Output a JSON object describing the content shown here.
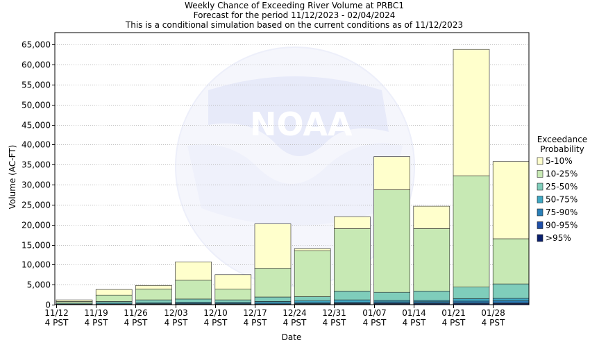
{
  "chart_data": {
    "type": "bar",
    "stacked": true,
    "title": "Weekly Chance of Exceeding River Volume at PRBC1",
    "subtitle": "Forecast for the period 11/12/2023 - 02/04/2024",
    "subtitle2": "This is a conditional simulation based on the current conditions as of 11/12/2023",
    "xlabel": "Date",
    "ylabel": "Volume (AC-FT)",
    "ylim": [
      0,
      68000
    ],
    "yticks": [
      0,
      5000,
      10000,
      15000,
      20000,
      25000,
      30000,
      35000,
      40000,
      45000,
      50000,
      55000,
      60000,
      65000
    ],
    "ytick_labels": [
      "0",
      "5,000",
      "10,000",
      "15,000",
      "20,000",
      "25,000",
      "30,000",
      "35,000",
      "40,000",
      "45,000",
      "50,000",
      "55,000",
      "60,000",
      "65,000"
    ],
    "categories": [
      "11/12",
      "11/19",
      "11/26",
      "12/03",
      "12/10",
      "12/17",
      "12/24",
      "12/31",
      "01/07",
      "01/14",
      "01/21",
      "01/28"
    ],
    "category_sublabel": "4 PST",
    "grid": true,
    "legend": {
      "title_line1": "Exceedance",
      "title_line2": "Probability",
      "placement": "right"
    },
    "series": [
      {
        "name": ">95%",
        "color": "#0a1f6e",
        "values": [
          30,
          60,
          80,
          100,
          90,
          120,
          150,
          180,
          200,
          220,
          250,
          280
        ]
      },
      {
        "name": "90-95%",
        "color": "#1f4fa8",
        "values": [
          20,
          40,
          50,
          60,
          60,
          80,
          100,
          120,
          150,
          150,
          200,
          200
        ]
      },
      {
        "name": "75-90%",
        "color": "#2a7fb8",
        "values": [
          50,
          100,
          120,
          150,
          150,
          200,
          250,
          300,
          350,
          350,
          450,
          500
        ]
      },
      {
        "name": "50-75%",
        "color": "#40a8c4",
        "values": [
          100,
          200,
          250,
          300,
          300,
          400,
          500,
          600,
          400,
          400,
          600,
          600
        ]
      },
      {
        "name": "25-50%",
        "color": "#7fcdbb",
        "values": [
          200,
          400,
          700,
          800,
          600,
          1100,
          1000,
          2200,
          2000,
          2300,
          2900,
          3600
        ]
      },
      {
        "name": "10-25%",
        "color": "#c7e9b4",
        "values": [
          400,
          1600,
          2700,
          4700,
          2700,
          7200,
          11500,
          15600,
          25600,
          15600,
          27800,
          11300
        ]
      },
      {
        "name": "5-10%",
        "color": "#ffffcc",
        "values": [
          400,
          1400,
          900,
          4600,
          3600,
          11100,
          500,
          3000,
          8300,
          5600,
          31600,
          19300
        ]
      }
    ]
  }
}
